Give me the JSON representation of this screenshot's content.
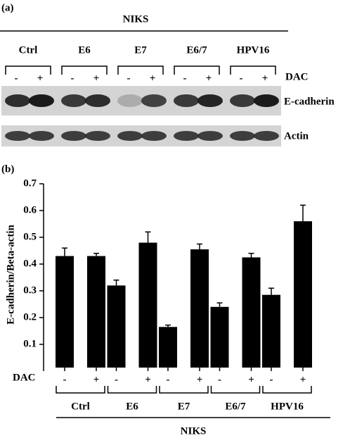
{
  "panel_a": {
    "label": "(a)",
    "title": "NIKS",
    "groups": [
      "Ctrl",
      "E6",
      "E7",
      "E6/7",
      "HPV16"
    ],
    "signs": [
      "-",
      "+",
      "-",
      "+",
      "-",
      "+",
      "-",
      "+",
      "-",
      "+"
    ],
    "treatment": "DAC",
    "bands": [
      "E-cadherin",
      "Actin"
    ]
  },
  "chart_data": {
    "type": "bar",
    "panel_label": "(b)",
    "ylabel": "E-cadherin/Beta-actin",
    "categories": [
      "-",
      "+",
      "-",
      "+",
      "-",
      "+",
      "-",
      "+",
      "-",
      "+"
    ],
    "groups": [
      "Ctrl",
      "E6",
      "E7",
      "E6/7",
      "HPV16"
    ],
    "group_title": "NIKS",
    "treatment": "DAC",
    "series": [
      {
        "color": "#000000",
        "values": [
          0.43,
          0.43,
          0.32,
          0.48,
          0.165,
          0.455,
          0.24,
          0.425,
          0.285,
          0.56
        ],
        "errors": [
          0.03,
          0.01,
          0.02,
          0.04,
          0.007,
          0.02,
          0.015,
          0.015,
          0.025,
          0.06
        ]
      }
    ],
    "ylim": [
      0,
      0.7
    ],
    "yticks": [
      0.1,
      0.2,
      0.3,
      0.4,
      0.5,
      0.6,
      0.7
    ]
  }
}
